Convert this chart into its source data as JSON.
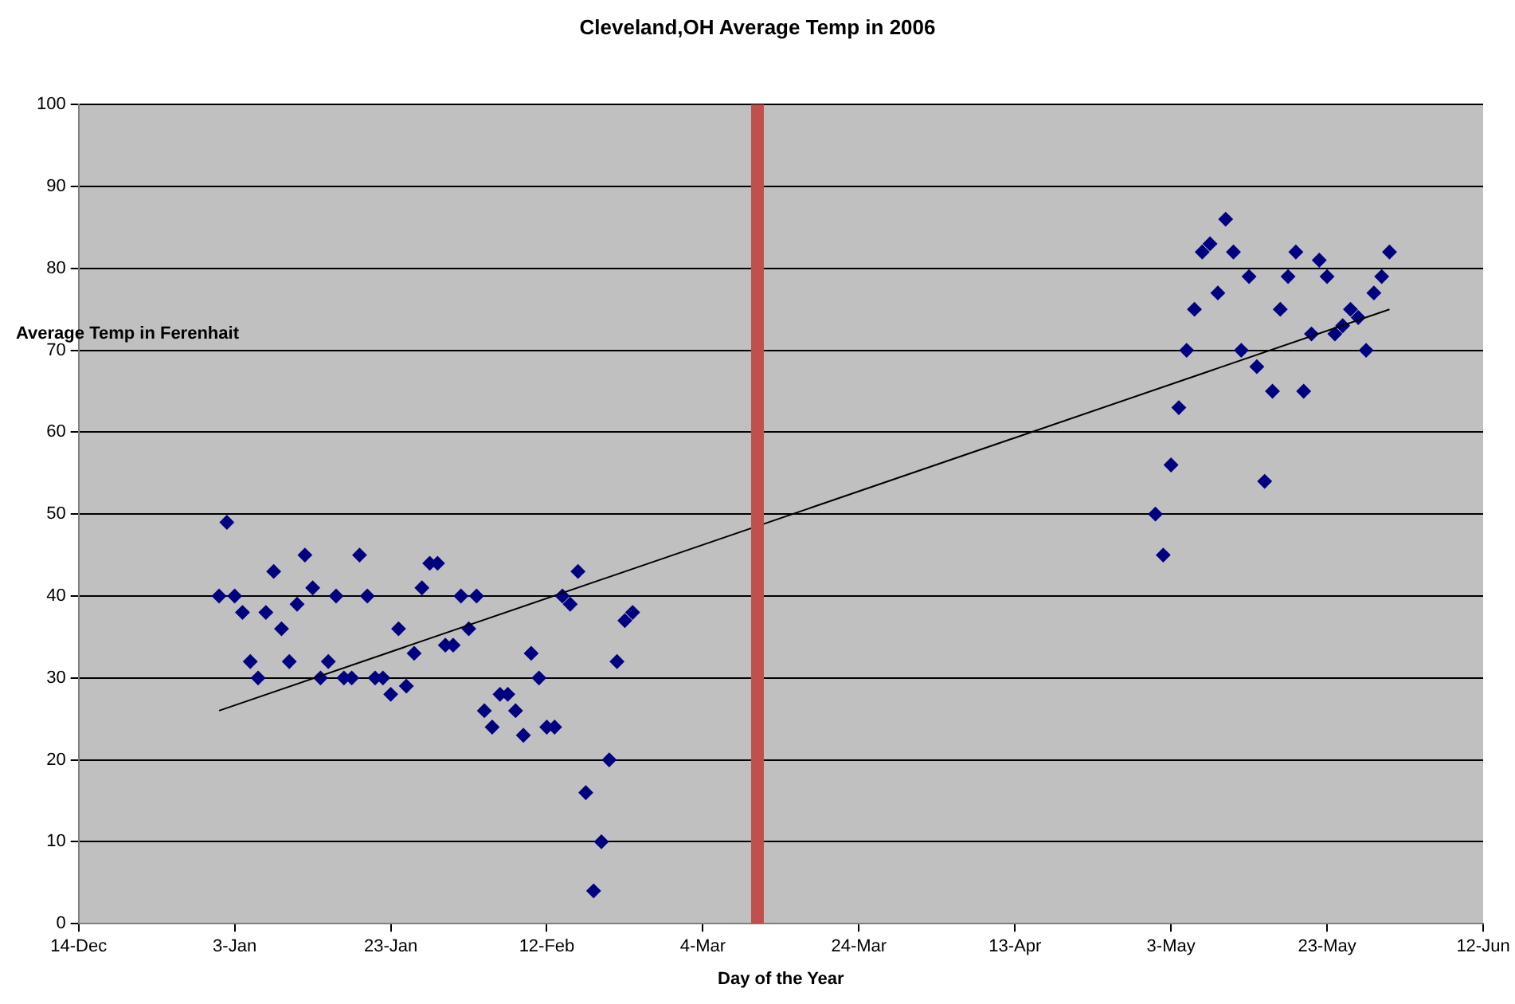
{
  "chart_data": {
    "type": "scatter",
    "title": "Cleveland,OH Average Temp in 2006",
    "xlabel": "Day of the Year",
    "ylabel": "Average Temp in Ferenhait",
    "xlim": [
      "2005-12-14",
      "2006-06-12"
    ],
    "xticks": [
      {
        "value": "2005-12-14",
        "label": "14-Dec"
      },
      {
        "value": "2006-01-03",
        "label": "3-Jan"
      },
      {
        "value": "2006-01-23",
        "label": "23-Jan"
      },
      {
        "value": "2006-02-12",
        "label": "12-Feb"
      },
      {
        "value": "2006-03-04",
        "label": "4-Mar"
      },
      {
        "value": "2006-03-24",
        "label": "24-Mar"
      },
      {
        "value": "2006-04-13",
        "label": "13-Apr"
      },
      {
        "value": "2006-05-03",
        "label": "3-May"
      },
      {
        "value": "2006-05-23",
        "label": "23-May"
      },
      {
        "value": "2006-06-12",
        "label": "12-Jun"
      }
    ],
    "ylim": [
      0,
      100
    ],
    "yticks": [
      0,
      10,
      20,
      30,
      40,
      50,
      60,
      70,
      80,
      90,
      100
    ],
    "grid": "y",
    "legend": false,
    "marker": "diamond",
    "series": [
      {
        "color": "#000080",
        "x": [
          "2006-01-01",
          "2006-01-02",
          "2006-01-03",
          "2006-01-04",
          "2006-01-05",
          "2006-01-06",
          "2006-01-07",
          "2006-01-08",
          "2006-01-09",
          "2006-01-10",
          "2006-01-11",
          "2006-01-12",
          "2006-01-13",
          "2006-01-14",
          "2006-01-15",
          "2006-01-16",
          "2006-01-17",
          "2006-01-18",
          "2006-01-19",
          "2006-01-20",
          "2006-01-21",
          "2006-01-22",
          "2006-01-23",
          "2006-01-24",
          "2006-01-25",
          "2006-01-26",
          "2006-01-27",
          "2006-01-28",
          "2006-01-29",
          "2006-01-30",
          "2006-01-31",
          "2006-02-01",
          "2006-02-02",
          "2006-02-03",
          "2006-02-04",
          "2006-02-05",
          "2006-02-06",
          "2006-02-07",
          "2006-02-08",
          "2006-02-09",
          "2006-02-10",
          "2006-02-11",
          "2006-02-12",
          "2006-02-13",
          "2006-02-14",
          "2006-02-15",
          "2006-02-16",
          "2006-02-17",
          "2006-02-18",
          "2006-02-19",
          "2006-02-20",
          "2006-02-21",
          "2006-02-22",
          "2006-02-23",
          "2006-05-01",
          "2006-05-02",
          "2006-05-03",
          "2006-05-04",
          "2006-05-05",
          "2006-05-06",
          "2006-05-07",
          "2006-05-08",
          "2006-05-09",
          "2006-05-10",
          "2006-05-11",
          "2006-05-12",
          "2006-05-13",
          "2006-05-14",
          "2006-05-15",
          "2006-05-16",
          "2006-05-17",
          "2006-05-18",
          "2006-05-19",
          "2006-05-20",
          "2006-05-21",
          "2006-05-22",
          "2006-05-23",
          "2006-05-24",
          "2006-05-25",
          "2006-05-26",
          "2006-05-27",
          "2006-05-28",
          "2006-05-29",
          "2006-05-30",
          "2006-05-31"
        ],
        "values": [
          40,
          49,
          40,
          38,
          32,
          30,
          38,
          43,
          36,
          32,
          39,
          45,
          41,
          30,
          32,
          40,
          30,
          30,
          45,
          40,
          30,
          30,
          28,
          36,
          29,
          33,
          41,
          44,
          44,
          34,
          34,
          40,
          36,
          40,
          26,
          24,
          28,
          28,
          26,
          23,
          33,
          30,
          24,
          24,
          40,
          39,
          43,
          16,
          4,
          10,
          20,
          32,
          37,
          38,
          50,
          45,
          56,
          63,
          70,
          75,
          82,
          83,
          77,
          86,
          82,
          70,
          79,
          68,
          54,
          65,
          75,
          79,
          82,
          65,
          72,
          81,
          79,
          72,
          73,
          75,
          74,
          70,
          77,
          79,
          82
        ]
      },
      {
        "type": "line",
        "color": "#000000",
        "marker": "none",
        "line_style": "solid",
        "x": [
          "2006-01-01",
          "2006-05-31"
        ],
        "values": [
          26,
          75
        ]
      }
    ],
    "ref_lines": [
      {
        "axis": "x",
        "value": "2006-03-11",
        "color": "#c0504d",
        "line_style": "solid"
      }
    ]
  }
}
